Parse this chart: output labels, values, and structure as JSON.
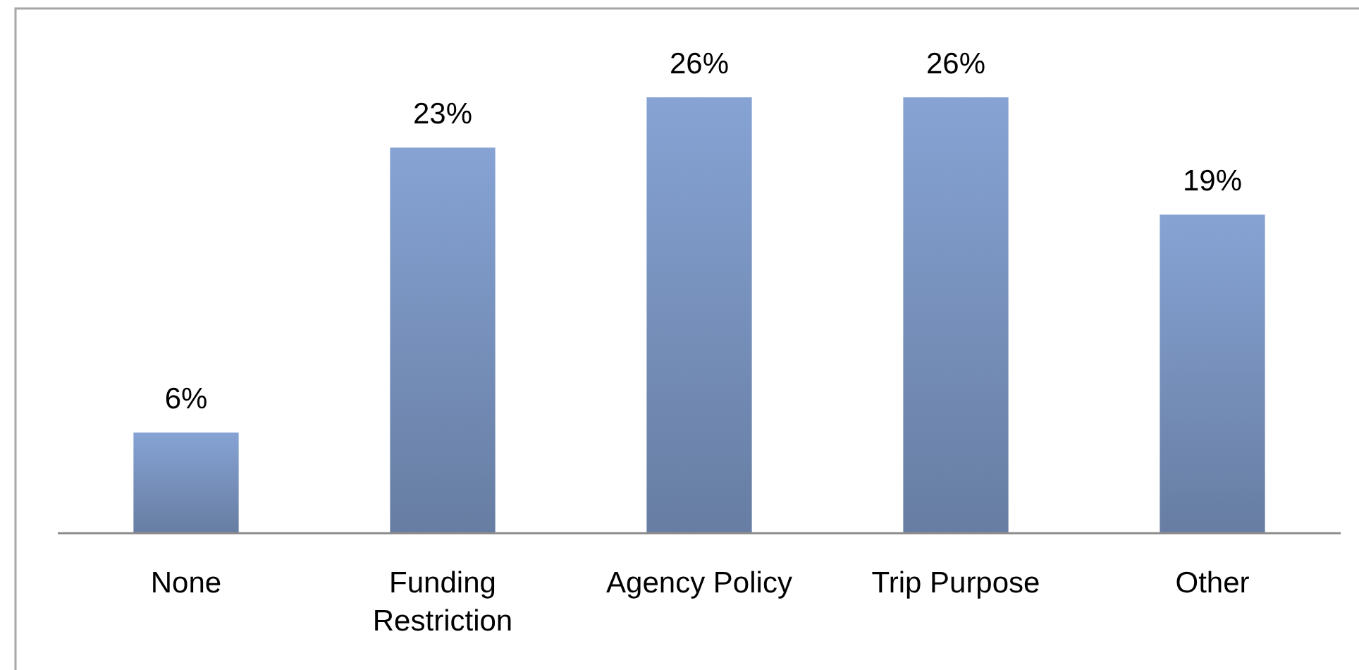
{
  "chart_data": {
    "type": "bar",
    "categories": [
      "None",
      "Funding Restriction",
      "Agency Policy",
      "Trip Purpose",
      "Other"
    ],
    "values": [
      6,
      23,
      26,
      26,
      19
    ],
    "value_labels": [
      "6%",
      "23%",
      "26%",
      "26%",
      "19%"
    ],
    "color": "#86a3d4",
    "tick_labels": "x"
  }
}
